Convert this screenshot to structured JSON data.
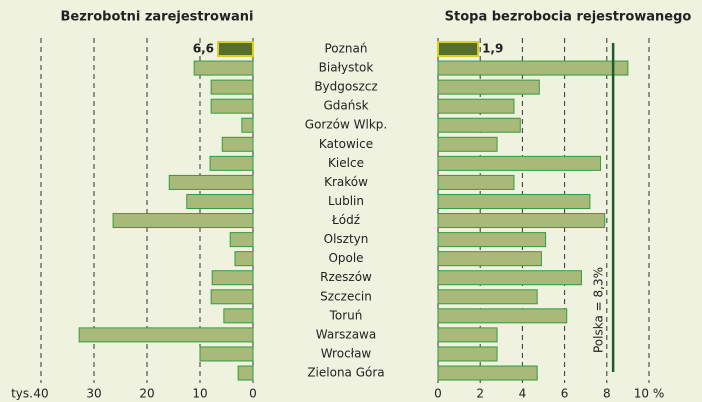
{
  "chart_data": [
    {
      "type": "bar",
      "orientation": "horizontal",
      "title": "Bezrobotni zarejestrowani",
      "categories": [
        "Poznań",
        "Białystok",
        "Bydgoszcz",
        "Gdańsk",
        "Gorzów Wlkp.",
        "Katowice",
        "Kielce",
        "Kraków",
        "Lublin",
        "Łódź",
        "Olsztyn",
        "Opole",
        "Rzeszów",
        "Szczecin",
        "Toruń",
        "Warszawa",
        "Wrocław",
        "Zielona Góra"
      ],
      "values": [
        6.6,
        11.1,
        7.9,
        7.9,
        2.1,
        5.8,
        8.1,
        15.8,
        12.5,
        26.4,
        4.3,
        3.4,
        7.7,
        7.9,
        5.5,
        32.8,
        10.0,
        2.8
      ],
      "value_labels": [
        "6,6",
        null,
        null,
        null,
        null,
        null,
        null,
        null,
        null,
        null,
        null,
        null,
        null,
        null,
        null,
        null,
        null,
        null
      ],
      "xlim": [
        0,
        40
      ],
      "x_reversed": true,
      "xticks": [
        0,
        10,
        20,
        30,
        40
      ],
      "unit_label": "tys.",
      "color": "#a9b97a",
      "edge_color": "#2e9e3e",
      "highlight_color": "#566f2c",
      "highlight_edge": "#d8d020",
      "highlight_index": 0,
      "grid": true
    },
    {
      "type": "bar",
      "orientation": "horizontal",
      "title": "Stopa bezrobocia rejestrowanego",
      "values": [
        1.9,
        9.0,
        4.8,
        3.6,
        3.9,
        2.8,
        7.7,
        3.6,
        7.2,
        7.9,
        5.1,
        4.9,
        6.8,
        4.7,
        6.1,
        2.8,
        2.8,
        4.7
      ],
      "value_labels": [
        "1,9",
        null,
        null,
        null,
        null,
        null,
        null,
        null,
        null,
        null,
        null,
        null,
        null,
        null,
        null,
        null,
        null,
        null
      ],
      "xlim": [
        0,
        10
      ],
      "xticks": [
        0,
        2,
        4,
        6,
        8,
        {
          "value": 10,
          "label": "10 %"
        }
      ],
      "reference": {
        "value": 8.3,
        "label": "Polska = 8,3%",
        "color": "#1d5a2c"
      },
      "color": "#a9b97a",
      "edge_color": "#2e9e3e",
      "highlight_color": "#566f2c",
      "highlight_edge": "#d8d020",
      "highlight_index": 0,
      "grid": true
    }
  ]
}
